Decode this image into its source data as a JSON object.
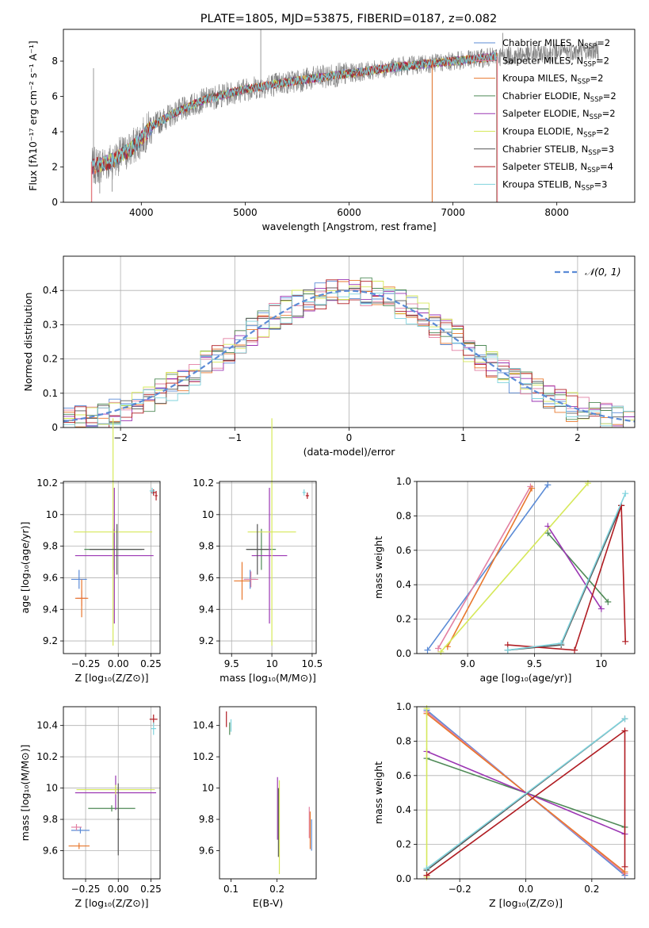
{
  "figure_title": "PLATE=1805, MJD=53875, FIBERID=0187, z=0.082",
  "colors": {
    "chabrier_miles": "#5b8bd6",
    "salpeter_miles": "#e27fa2",
    "kroupa_miles": "#e8772d",
    "chabrier_elodie": "#4f8a57",
    "salpeter_elodie": "#9b36b3",
    "kroupa_elodie": "#d6e85a",
    "chabrier_stelib": "#555555",
    "salpeter_stelib": "#b01c22",
    "kroupa_stelib": "#7fd3dd",
    "data": "#808080",
    "normal": "#5b8bd6"
  },
  "chart_data": [
    {
      "id": "spectrum",
      "type": "line",
      "title": "PLATE=1805, MJD=53875, FIBERID=0187, z=0.082",
      "xlabel": "wavelength [Angstrom, rest frame]",
      "ylabel": "Flux [fλ10⁻¹⁷ erg cm⁻² s⁻¹ A⁻¹]",
      "xlim": [
        3250,
        8750
      ],
      "ylim": [
        0,
        9.8
      ],
      "xticks": [
        4000,
        5000,
        6000,
        7000,
        8000
      ],
      "yticks": [
        0,
        2,
        4,
        6,
        8
      ],
      "grid": false,
      "legend": "top-right",
      "legend_entries": [
        {
          "label": "Chabrier MILES, N",
          "sub": "SSP",
          "tail": "=2",
          "color": "#5b8bd6"
        },
        {
          "label": "Salpeter MILES, N",
          "sub": "SSP",
          "tail": "=2",
          "color": "#e27fa2"
        },
        {
          "label": "Kroupa MILES, N",
          "sub": "SSP",
          "tail": "=2",
          "color": "#e8772d"
        },
        {
          "label": "Chabrier ELODIE, N",
          "sub": "SSP",
          "tail": "=2",
          "color": "#4f8a57"
        },
        {
          "label": "Salpeter ELODIE, N",
          "sub": "SSP",
          "tail": "=2",
          "color": "#9b36b3"
        },
        {
          "label": "Kroupa ELODIE, N",
          "sub": "SSP",
          "tail": "=2",
          "color": "#d6e85a"
        },
        {
          "label": "Chabrier STELIB, N",
          "sub": "SSP",
          "tail": "=3",
          "color": "#555555"
        },
        {
          "label": "Salpeter STELIB, N",
          "sub": "SSP",
          "tail": "=4",
          "color": "#b01c22"
        },
        {
          "label": "Kroupa STELIB, N",
          "sub": "SSP",
          "tail": "=3",
          "color": "#7fd3dd"
        }
      ],
      "continuum": [
        [
          3520,
          2.0
        ],
        [
          3700,
          2.3
        ],
        [
          3900,
          3.0
        ],
        [
          4000,
          3.6
        ],
        [
          4100,
          4.3
        ],
        [
          4300,
          5.0
        ],
        [
          4600,
          5.8
        ],
        [
          5000,
          6.4
        ],
        [
          5500,
          6.9
        ],
        [
          6000,
          7.3
        ],
        [
          6500,
          7.7
        ],
        [
          7000,
          8.0
        ],
        [
          7500,
          8.3
        ],
        [
          8000,
          8.5
        ],
        [
          8400,
          8.6
        ]
      ],
      "data_range": [
        3520,
        8400
      ],
      "spikes": [
        [
          3540,
          7.6
        ],
        [
          3600,
          0.5
        ],
        [
          3720,
          0.6
        ],
        [
          5150,
          9.8
        ],
        [
          6800,
          0.0
        ],
        [
          7420,
          0.0
        ],
        [
          7480,
          9.6
        ]
      ]
    },
    {
      "id": "residuals",
      "type": "bar",
      "xlabel": "(data-model)/error",
      "ylabel": "Normed distribution",
      "xlim": [
        -2.5,
        2.5
      ],
      "ylim": [
        0,
        0.5
      ],
      "xticks": [
        -2,
        -1,
        0,
        1,
        2
      ],
      "yticks": [
        0.0,
        0.1,
        0.2,
        0.3,
        0.4
      ],
      "grid": true,
      "legend": "top-right",
      "legend_label": "𝒩(0, 1)",
      "bins": [
        -2.5,
        2.5,
        50
      ]
    },
    {
      "id": "age_vs_Z",
      "type": "scatter",
      "xlabel": "Z [log₁₀(Z/Z⊙)]",
      "ylabel": "age  [log₁₀(age/yr)]",
      "xlim": [
        -0.42,
        0.32
      ],
      "ylim": [
        9.12,
        10.21
      ],
      "xticks": [
        -0.25,
        0.0,
        0.25
      ],
      "yticks": [
        9.2,
        9.4,
        9.6,
        9.8,
        10.0,
        10.2
      ],
      "grid": true,
      "points": [
        {
          "series": "chabrier_miles",
          "x": -0.3,
          "y": 9.59,
          "xerr": 0.06,
          "yerr": 0.06
        },
        {
          "series": "salpeter_miles",
          "x": -0.28,
          "y": 9.47,
          "xerr": 0.04,
          "yerr": 0.05
        },
        {
          "series": "kroupa_miles",
          "x": -0.28,
          "y": 9.47,
          "xerr": 0.05,
          "yerr": 0.12
        },
        {
          "series": "chabrier_elodie",
          "x": -0.04,
          "y": 9.78,
          "xerr": 0.22,
          "yerr": 0.13
        },
        {
          "series": "salpeter_elodie",
          "x": -0.03,
          "y": 9.74,
          "xerr": 0.3,
          "yerr": 0.43
        },
        {
          "series": "kroupa_elodie",
          "x": -0.04,
          "y": 9.89,
          "xerr": 0.3,
          "yerr": 0.72
        },
        {
          "series": "chabrier_stelib",
          "x": -0.01,
          "y": 9.78,
          "xerr": 0.21,
          "yerr": 0.16
        },
        {
          "series": "salpeter_stelib",
          "x": 0.27,
          "y": 10.14,
          "xerr": 0.02,
          "yerr": 0.02
        },
        {
          "series": "salpeter_stelib",
          "x": 0.29,
          "y": 10.12,
          "xerr": 0.01,
          "yerr": 0.03
        },
        {
          "series": "kroupa_stelib",
          "x": 0.26,
          "y": 10.15,
          "xerr": 0.02,
          "yerr": 0.02
        }
      ]
    },
    {
      "id": "age_vs_mass",
      "type": "scatter",
      "xlabel": "mass [log₁₀(M/M⊙)]",
      "ylabel": "",
      "xlim": [
        9.35,
        10.55
      ],
      "ylim": [
        9.12,
        10.21
      ],
      "xticks": [
        9.5,
        10.0,
        10.5
      ],
      "yticks": [
        9.2,
        9.4,
        9.6,
        9.8,
        10.0,
        10.2
      ],
      "grid": true,
      "points": [
        {
          "series": "chabrier_miles",
          "x": 9.73,
          "y": 9.59,
          "xerr": 0.07,
          "yerr": 0.06
        },
        {
          "series": "salpeter_miles",
          "x": 9.74,
          "y": 9.59,
          "xerr": 0.09,
          "yerr": 0.05
        },
        {
          "series": "kroupa_miles",
          "x": 9.63,
          "y": 9.58,
          "xerr": 0.1,
          "yerr": 0.12
        },
        {
          "series": "chabrier_elodie",
          "x": 9.87,
          "y": 9.78,
          "xerr": 0.18,
          "yerr": 0.13
        },
        {
          "series": "salpeter_elodie",
          "x": 9.97,
          "y": 9.74,
          "xerr": 0.22,
          "yerr": 0.43
        },
        {
          "series": "kroupa_elodie",
          "x": 10.0,
          "y": 9.89,
          "xerr": 0.3,
          "yerr": 0.72
        },
        {
          "series": "chabrier_stelib",
          "x": 9.82,
          "y": 9.78,
          "xerr": 0.14,
          "yerr": 0.16
        },
        {
          "series": "salpeter_stelib",
          "x": 10.44,
          "y": 10.12,
          "xerr": 0.02,
          "yerr": 0.02
        },
        {
          "series": "kroupa_stelib",
          "x": 10.4,
          "y": 10.14,
          "xerr": 0.02,
          "yerr": 0.02
        }
      ]
    },
    {
      "id": "weight_vs_age",
      "type": "line",
      "xlabel": "age  [log₁₀(age/yr)]",
      "ylabel": "mass weight",
      "xlim": [
        8.62,
        10.25
      ],
      "ylim": [
        0,
        1.0
      ],
      "xticks": [
        9.0,
        9.5,
        10.0
      ],
      "yticks": [
        0.0,
        0.2,
        0.4,
        0.6,
        0.8,
        1.0
      ],
      "grid": true,
      "series": [
        {
          "name": "chabrier_miles",
          "x": [
            8.7,
            9.6
          ],
          "y": [
            0.02,
            0.98
          ]
        },
        {
          "name": "salpeter_miles",
          "x": [
            8.78,
            9.47
          ],
          "y": [
            0.03,
            0.97
          ]
        },
        {
          "name": "kroupa_miles",
          "x": [
            8.85,
            9.48
          ],
          "y": [
            0.04,
            0.96
          ]
        },
        {
          "name": "chabrier_elodie",
          "x": [
            9.6,
            10.05
          ],
          "y": [
            0.7,
            0.3
          ]
        },
        {
          "name": "salpeter_elodie",
          "x": [
            9.6,
            10.0
          ],
          "y": [
            0.74,
            0.26
          ]
        },
        {
          "name": "kroupa_elodie",
          "x": [
            8.8,
            9.9
          ],
          "y": [
            0.01,
            0.99
          ]
        },
        {
          "name": "chabrier_stelib",
          "x": [
            9.3,
            9.7,
            10.15
          ],
          "y": [
            0.02,
            0.05,
            0.86
          ]
        },
        {
          "name": "salpeter_stelib",
          "x": [
            9.3,
            9.8,
            10.15,
            10.18
          ],
          "y": [
            0.05,
            0.02,
            0.86,
            0.07
          ]
        },
        {
          "name": "kroupa_stelib",
          "x": [
            9.3,
            9.7,
            10.18
          ],
          "y": [
            0.02,
            0.06,
            0.93
          ]
        }
      ]
    },
    {
      "id": "mass_vs_Z",
      "type": "scatter",
      "xlabel": "Z [log₁₀(Z/Z⊙)]",
      "ylabel": "mass [log₁₀(M/M⊙)]",
      "xlim": [
        -0.42,
        0.32
      ],
      "ylim": [
        9.42,
        10.52
      ],
      "xticks": [
        -0.25,
        0.0,
        0.25
      ],
      "yticks": [
        9.6,
        9.8,
        10.0,
        10.2,
        10.4
      ],
      "grid": true,
      "points": [
        {
          "series": "chabrier_miles",
          "x": -0.29,
          "y": 9.73,
          "xerr": 0.07,
          "yerr": 0.02
        },
        {
          "series": "salpeter_miles",
          "x": -0.32,
          "y": 9.75,
          "xerr": 0.04,
          "yerr": 0.02
        },
        {
          "series": "kroupa_miles",
          "x": -0.3,
          "y": 9.63,
          "xerr": 0.08,
          "yerr": 0.02
        },
        {
          "series": "chabrier_elodie",
          "x": -0.05,
          "y": 9.87,
          "xerr": 0.18,
          "yerr": 0.02
        },
        {
          "series": "salpeter_elodie",
          "x": -0.02,
          "y": 9.97,
          "xerr": 0.31,
          "yerr": 0.11
        },
        {
          "series": "kroupa_elodie",
          "x": -0.02,
          "y": 9.99,
          "xerr": 0.3,
          "yerr": 0.03
        },
        {
          "series": "chabrier_stelib",
          "x": 0.0,
          "y": 9.8,
          "xerr": 0.01,
          "yerr": 0.23
        },
        {
          "series": "salpeter_stelib",
          "x": 0.27,
          "y": 10.44,
          "xerr": 0.03,
          "yerr": 0.03
        },
        {
          "series": "kroupa_stelib",
          "x": 0.27,
          "y": 10.38,
          "xerr": 0.02,
          "yerr": 0.04
        }
      ]
    },
    {
      "id": "mass_vs_EBV",
      "type": "scatter",
      "xlabel": "E(B-V)",
      "ylabel": "",
      "xlim": [
        0.075,
        0.285
      ],
      "ylim": [
        9.42,
        10.52
      ],
      "xticks": [
        0.1,
        0.2
      ],
      "yticks": [
        9.6,
        9.8,
        10.0,
        10.2,
        10.4
      ],
      "grid": false,
      "points": [
        {
          "series": "salpeter_stelib",
          "x": 0.09,
          "y": 10.44,
          "xerr": 0,
          "yerr": 0.05
        },
        {
          "series": "chabrier_elodie",
          "x": 0.097,
          "y": 10.38,
          "xerr": 0,
          "yerr": 0.04
        },
        {
          "series": "kroupa_stelib",
          "x": 0.1,
          "y": 10.4,
          "xerr": 0,
          "yerr": 0.04
        },
        {
          "series": "salpeter_elodie",
          "x": 0.201,
          "y": 9.87,
          "xerr": 0,
          "yerr": 0.2
        },
        {
          "series": "chabrier_stelib",
          "x": 0.203,
          "y": 9.78,
          "xerr": 0,
          "yerr": 0.22
        },
        {
          "series": "kroupa_elodie",
          "x": 0.205,
          "y": 9.75,
          "xerr": 0,
          "yerr": 0.3
        },
        {
          "series": "salpeter_miles",
          "x": 0.27,
          "y": 9.78,
          "xerr": 0,
          "yerr": 0.1
        },
        {
          "series": "kroupa_miles",
          "x": 0.272,
          "y": 9.73,
          "xerr": 0,
          "yerr": 0.12
        },
        {
          "series": "chabrier_miles",
          "x": 0.275,
          "y": 9.7,
          "xerr": 0,
          "yerr": 0.1
        }
      ]
    },
    {
      "id": "weight_vs_Z",
      "type": "line",
      "xlabel": "Z [log₁₀(Z/Z⊙)]",
      "ylabel": "mass weight",
      "xlim": [
        -0.33,
        0.33
      ],
      "ylim": [
        0,
        1.0
      ],
      "xticks": [
        -0.2,
        0.0,
        0.2
      ],
      "yticks": [
        0.0,
        0.2,
        0.4,
        0.6,
        0.8,
        1.0
      ],
      "grid": true,
      "series": [
        {
          "name": "chabrier_miles",
          "x": [
            -0.3,
            0.3
          ],
          "y": [
            0.98,
            0.02
          ]
        },
        {
          "name": "salpeter_miles",
          "x": [
            -0.3,
            0.3
          ],
          "y": [
            0.97,
            0.03
          ]
        },
        {
          "name": "kroupa_miles",
          "x": [
            -0.3,
            0.3
          ],
          "y": [
            0.96,
            0.04
          ]
        },
        {
          "name": "chabrier_elodie",
          "x": [
            -0.3,
            0.3
          ],
          "y": [
            0.7,
            0.3
          ]
        },
        {
          "name": "salpeter_elodie",
          "x": [
            -0.3,
            0.3
          ],
          "y": [
            0.74,
            0.26
          ]
        },
        {
          "name": "kroupa_elodie",
          "x": [
            -0.3,
            -0.3
          ],
          "y": [
            0.01,
            0.99
          ]
        },
        {
          "name": "chabrier_stelib",
          "x": [
            -0.3,
            0.3
          ],
          "y": [
            0.05,
            0.93
          ]
        },
        {
          "name": "salpeter_stelib",
          "x": [
            -0.3,
            0.3,
            0.3
          ],
          "y": [
            0.02,
            0.86,
            0.07
          ]
        },
        {
          "name": "kroupa_stelib",
          "x": [
            -0.3,
            0.3
          ],
          "y": [
            0.06,
            0.93
          ]
        }
      ]
    }
  ]
}
